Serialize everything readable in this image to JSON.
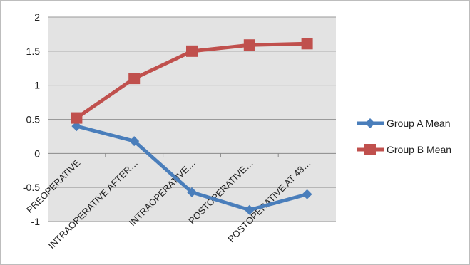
{
  "chart_data": {
    "type": "line",
    "title": "",
    "xlabel": "",
    "ylabel": "",
    "ylim": [
      -1,
      2
    ],
    "yticks": [
      "2",
      "1.5",
      "1",
      "0.5",
      "0",
      "-0.5",
      "-1"
    ],
    "categories": [
      "PREOPERATIVE",
      "INTRAOPERATIVE AFTER…",
      "INTRAOPERATIVE…",
      "POSTOPERATIVE…",
      "POSTOPERATIVE AT 48…"
    ],
    "series": [
      {
        "name": "Group A Mean",
        "color": "#4a7ebb",
        "marker": "diamond",
        "values": [
          0.4,
          0.18,
          -0.57,
          -0.83,
          -0.6
        ]
      },
      {
        "name": "Group B Mean",
        "color": "#c0504d",
        "marker": "square",
        "values": [
          0.52,
          1.1,
          1.5,
          1.59,
          1.61
        ]
      }
    ],
    "grid": true,
    "legend_position": "right"
  }
}
